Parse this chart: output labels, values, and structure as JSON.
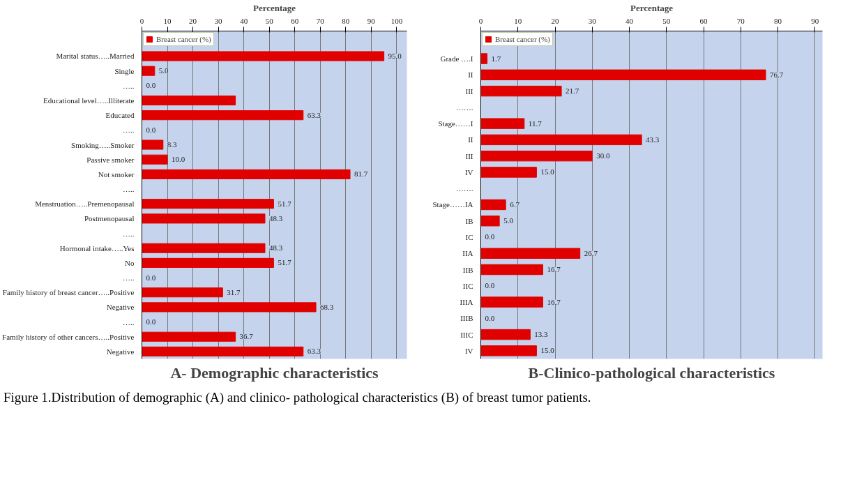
{
  "chart_data": [
    {
      "type": "bar",
      "orientation": "horizontal",
      "title": "A- Demographic characteristics",
      "xlabel": "Percentage",
      "legend": "top left",
      "grid": "x",
      "xlim": [
        0,
        104
      ],
      "xticks": [
        0,
        10,
        20,
        30,
        40,
        50,
        60,
        70,
        80,
        90,
        100
      ],
      "categories": [
        "Marital status…..Married",
        "Single",
        "…..",
        "Educational level…..Illiterate",
        "Educated",
        "…..",
        "Smoking…..Smoker",
        "Passive smoker",
        "Not smoker",
        "…..",
        "Menstruation…..Premenopausal",
        "Postmenopausal",
        "…..",
        "Hormonal intake…..Yes",
        "No",
        "…..",
        "Family history of breast cancer…..Positive",
        "Negative",
        "…..",
        "Family history of other cancers…..Positive",
        "Negative"
      ],
      "series": [
        {
          "name": "Breast cancer (%)",
          "color": "#e00000",
          "values": [
            95.0,
            5.0,
            0.0,
            36.7,
            63.3,
            0.0,
            8.3,
            10.0,
            81.7,
            null,
            51.7,
            48.3,
            null,
            48.3,
            51.7,
            0.0,
            31.7,
            68.3,
            0.0,
            36.7,
            63.3
          ],
          "value_labels": [
            "95.0",
            "5.0",
            "0.0",
            null,
            "63.3",
            "0.0",
            "8.3",
            "10.0",
            "81.7",
            null,
            "51.7",
            "48.3",
            null,
            "48.3",
            "51.7",
            "0.0",
            "31.7",
            "68.3",
            "0.0",
            "36.7",
            "63.3"
          ]
        }
      ],
      "annotations": [
        "Figure 1.Distribution of demographic (A) and clinico- pathological characteristics (B) of breast tumor patients."
      ]
    },
    {
      "type": "bar",
      "orientation": "horizontal",
      "title": "B-Clinico-pathological characteristics",
      "xlabel": "Percentage",
      "legend": "top left",
      "grid": "x",
      "xlim": [
        0,
        92
      ],
      "xticks": [
        0,
        10,
        20,
        30,
        40,
        50,
        60,
        70,
        80,
        90
      ],
      "categories": [
        "Grade ….I",
        "II",
        "III",
        "…….",
        "Stage……I",
        "II",
        "III",
        "IV",
        "…….",
        "Stage……IA",
        "IB",
        "IC",
        "IIA",
        "IIB",
        "IIC",
        "IIIA",
        "IIIB",
        "IIIC",
        "IV"
      ],
      "series": [
        {
          "name": "Breast cancer (%)",
          "color": "#e00000",
          "values": [
            1.7,
            76.7,
            21.7,
            null,
            11.7,
            43.3,
            30.0,
            15.0,
            null,
            6.7,
            5.0,
            0.0,
            26.7,
            16.7,
            0.0,
            16.7,
            0.0,
            13.3,
            15.0
          ],
          "value_labels": [
            "1.7",
            "76.7",
            "21.7",
            null,
            "11.7",
            "43.3",
            "30.0",
            "15.0",
            null,
            "6.7",
            "5.0",
            "0.0",
            "26.7",
            "16.7",
            "0.0",
            "16.7",
            "0.0",
            "13.3",
            "15.0"
          ]
        }
      ]
    }
  ]
}
